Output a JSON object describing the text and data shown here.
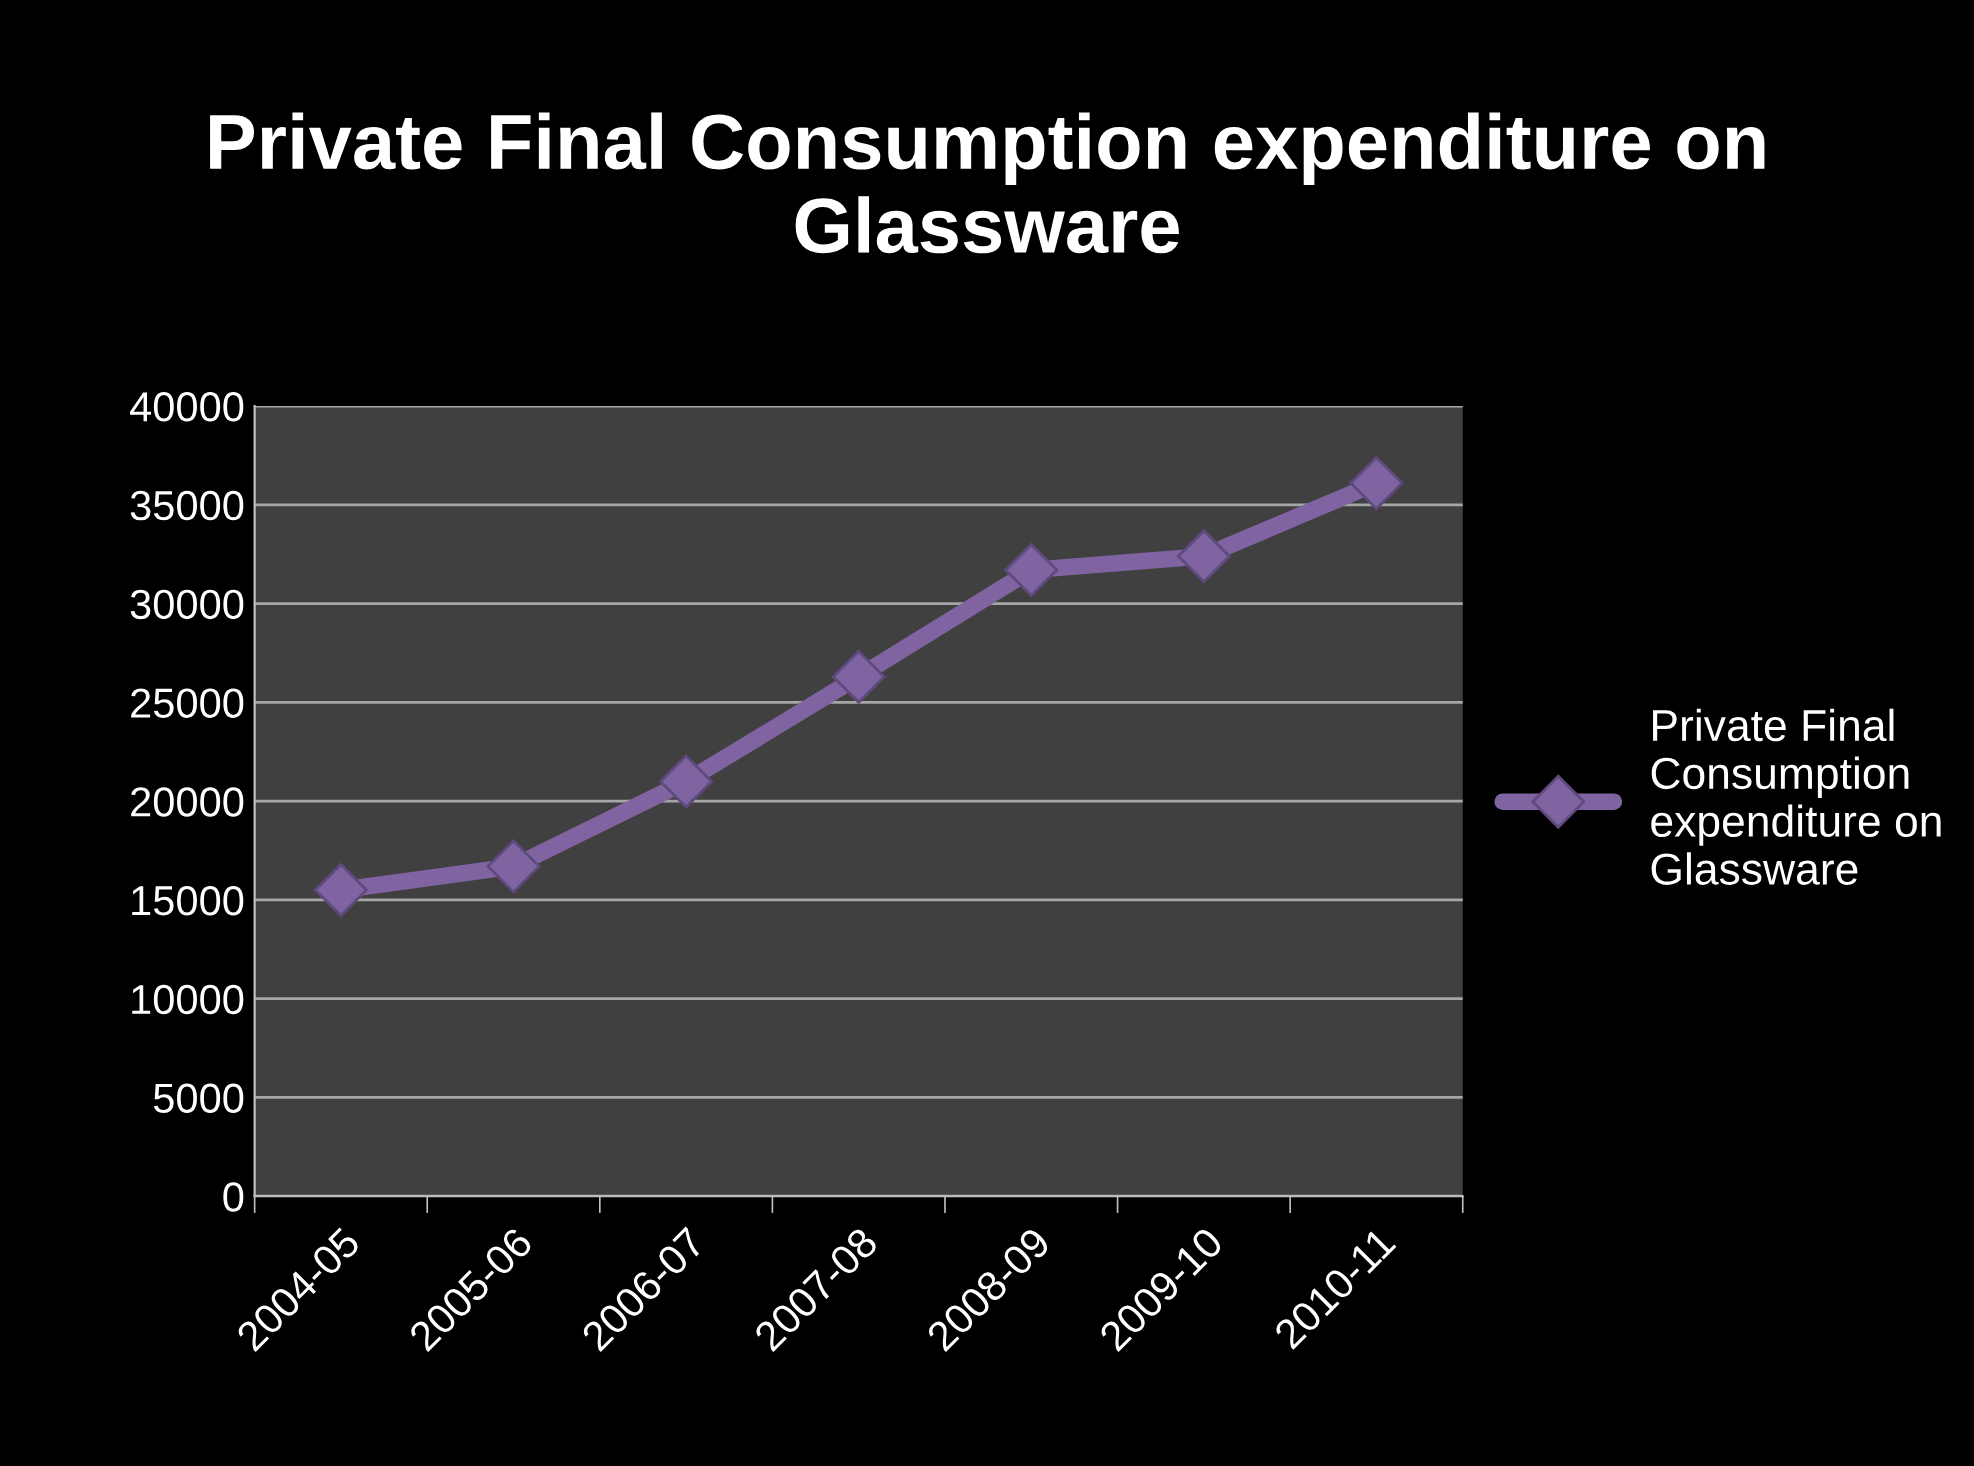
{
  "chart_data": {
    "type": "line",
    "title": "Private Final Consumption expenditure on Glassware",
    "categories": [
      "2004-05",
      "2005-06",
      "2006-07",
      "2007-08",
      "2008-09",
      "2009-10",
      "2010-11"
    ],
    "series": [
      {
        "name": "Private Final Consumption expenditure on Glassware",
        "color": "#8064a2",
        "values": [
          15500,
          16700,
          21000,
          26300,
          31700,
          32400,
          36100
        ]
      }
    ],
    "ylim": [
      0,
      40000
    ],
    "yticks": [
      0,
      5000,
      10000,
      15000,
      20000,
      25000,
      30000,
      35000,
      40000
    ],
    "grid": "y",
    "legend": "right",
    "marker": "diamond",
    "line_style": "solid"
  }
}
